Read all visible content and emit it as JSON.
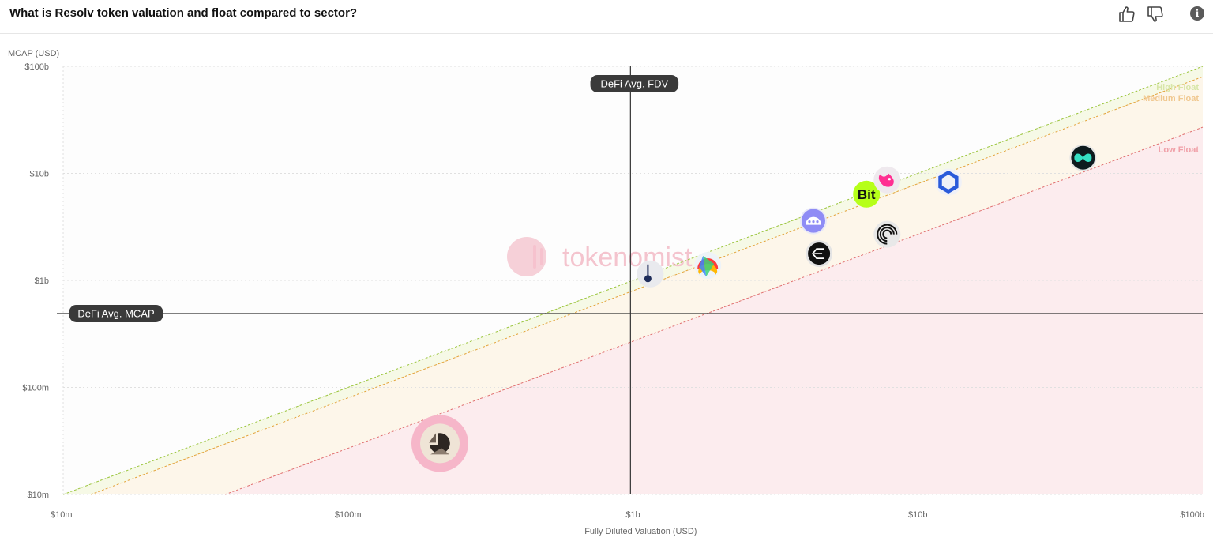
{
  "header": {
    "title": "What is Resolv token valuation and float compared to sector?",
    "thumbs_up_icon": "thumbs-up-icon",
    "thumbs_down_icon": "thumbs-down-icon",
    "info_icon": "info-icon",
    "info_glyph": "i"
  },
  "watermark": "tokenomist",
  "colors": {
    "grid": "#e0e0e0",
    "reference_line": "#333333",
    "pill_bg": "#3a3a3a",
    "high_float": "#9bc53d",
    "medium_float": "#e3a33a",
    "low_float": "#e07070",
    "low_float_zone": "#fcecee",
    "medium_zone": "#fdf6ea",
    "high_zone": "#f6f9e6",
    "highlight_ring": "#f6b6c9"
  },
  "chart_data": {
    "type": "scatter",
    "xlabel": "Fully Diluted Valuation (USD)",
    "ylabel": "MCAP (USD)",
    "x_scale": "log",
    "y_scale": "log",
    "xlim": [
      10000000,
      100000000000
    ],
    "ylim": [
      10000000,
      100000000000
    ],
    "x_ticks": [
      {
        "value": 10000000,
        "label": "$10m"
      },
      {
        "value": 100000000,
        "label": "$100m"
      },
      {
        "value": 1000000000,
        "label": "$1b"
      },
      {
        "value": 10000000000,
        "label": "$10b"
      },
      {
        "value": 100000000000,
        "label": "$100b"
      }
    ],
    "y_ticks": [
      {
        "value": 10000000,
        "label": "$10m"
      },
      {
        "value": 100000000,
        "label": "$100m"
      },
      {
        "value": 1000000000,
        "label": "$1b"
      },
      {
        "value": 10000000000,
        "label": "$10b"
      },
      {
        "value": 100000000000,
        "label": "$100b"
      }
    ],
    "grid": true,
    "reference_lines": [
      {
        "axis": "x",
        "value": 980000000,
        "label": "DeFi Avg. FDV"
      },
      {
        "axis": "y",
        "value": 490000000,
        "label": "DeFi Avg. MCAP"
      }
    ],
    "float_bands": [
      {
        "label": "High Float",
        "ratio": 1.0
      },
      {
        "label": "Medium Float",
        "ratio": 0.8
      },
      {
        "label": "Low Float",
        "ratio": 0.27
      }
    ],
    "points": [
      {
        "icon": "resolv-icon",
        "fdv": 210000000,
        "mcap": 30000000,
        "highlight": true
      },
      {
        "icon": "thermometer-icon",
        "fdv": 1150000000,
        "mcap": 1150000000
      },
      {
        "icon": "rainbow-token-icon",
        "fdv": 1830000000,
        "mcap": 1380000000
      },
      {
        "icon": "ethena-icon",
        "fdv": 4500000000,
        "mcap": 1780000000
      },
      {
        "icon": "smile-token-icon",
        "fdv": 4300000000,
        "mcap": 3600000000
      },
      {
        "icon": "bitget-icon",
        "fdv": 6600000000,
        "mcap": 6400000000
      },
      {
        "icon": "uniswap-icon",
        "fdv": 7800000000,
        "mcap": 8700000000
      },
      {
        "icon": "spiral-token-icon",
        "fdv": 7800000000,
        "mcap": 2700000000
      },
      {
        "icon": "chainlink-icon",
        "fdv": 12800000000,
        "mcap": 8300000000
      },
      {
        "icon": "infinity-token-icon",
        "fdv": 38000000000,
        "mcap": 14000000000
      }
    ],
    "point_badges": {
      "bitget-icon": "Bit"
    }
  }
}
